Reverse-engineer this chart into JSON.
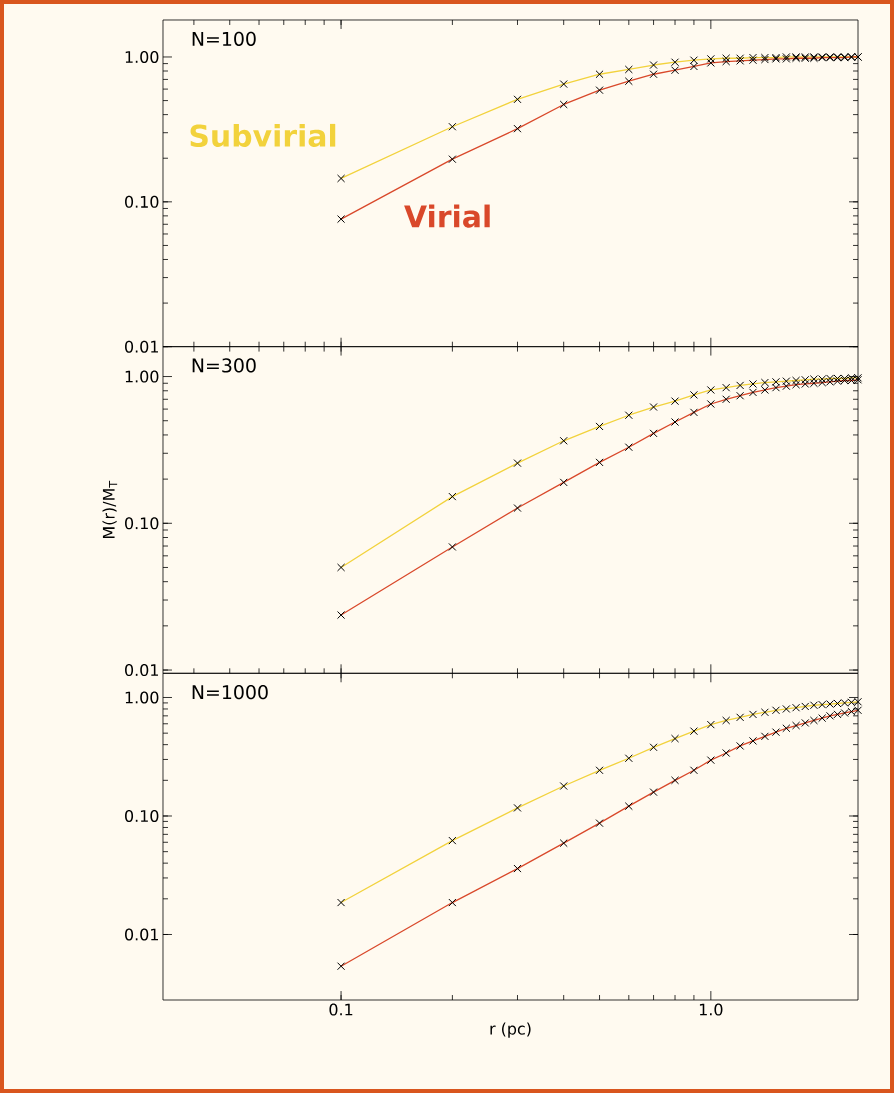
{
  "chart_data": [
    {
      "type": "line",
      "log": "xy",
      "marker": "cross",
      "tick_labels": "y",
      "xlim": [
        0.033,
        2.5
      ],
      "ylim": [
        0.01,
        1.8
      ],
      "yticks": [
        {
          "value": 0.01,
          "label": "0.01"
        },
        {
          "value": 0.1,
          "label": "0.10"
        },
        {
          "value": 1,
          "label": "1.00"
        }
      ],
      "annotations": [
        "N=100"
      ],
      "x": [
        0.1,
        0.2,
        0.3,
        0.4,
        0.5,
        0.6,
        0.7,
        0.8,
        0.9,
        1.0,
        1.1,
        1.2,
        1.3,
        1.4,
        1.5,
        1.6,
        1.7,
        1.8,
        1.9,
        2.0,
        2.1,
        2.2,
        2.3,
        2.4,
        2.5
      ],
      "series": [
        {
          "name": "Subvirial",
          "color": "#f2d23c",
          "values": [
            0.145,
            0.33,
            0.51,
            0.65,
            0.76,
            0.82,
            0.88,
            0.92,
            0.95,
            0.97,
            0.98,
            0.98,
            0.99,
            0.99,
            0.99,
            1.0,
            1.0,
            1.0,
            1.0,
            1.0,
            1.0,
            1.0,
            1.0,
            1.0,
            1.0
          ]
        },
        {
          "name": "Virial",
          "color": "#d9482a",
          "values": [
            0.076,
            0.197,
            0.32,
            0.47,
            0.59,
            0.68,
            0.76,
            0.81,
            0.86,
            0.91,
            0.93,
            0.94,
            0.95,
            0.96,
            0.97,
            0.97,
            0.98,
            0.98,
            0.98,
            0.99,
            0.99,
            0.99,
            0.99,
            1.0,
            1.0
          ]
        }
      ]
    },
    {
      "type": "line",
      "log": "xy",
      "marker": "cross",
      "tick_labels": "y",
      "xlim": [
        0.033,
        2.5
      ],
      "ylim": [
        0.0095,
        1.6
      ],
      "yticks": [
        {
          "value": 0.01,
          "label": "0.01"
        },
        {
          "value": 0.1,
          "label": "0.10"
        },
        {
          "value": 1,
          "label": "1.00"
        }
      ],
      "ylabel": "M(r)/M$_{T}$",
      "annotations": [
        "N=300"
      ],
      "x": [
        0.1,
        0.2,
        0.3,
        0.4,
        0.5,
        0.6,
        0.7,
        0.8,
        0.9,
        1.0,
        1.1,
        1.2,
        1.3,
        1.4,
        1.5,
        1.6,
        1.7,
        1.8,
        1.9,
        2.0,
        2.1,
        2.2,
        2.3,
        2.4,
        2.5
      ],
      "series": [
        {
          "color": "#f2d23c",
          "values": [
            0.05,
            0.152,
            0.257,
            0.365,
            0.457,
            0.545,
            0.62,
            0.68,
            0.75,
            0.81,
            0.84,
            0.87,
            0.89,
            0.91,
            0.92,
            0.93,
            0.94,
            0.95,
            0.96,
            0.96,
            0.97,
            0.97,
            0.97,
            0.98,
            0.98
          ]
        },
        {
          "color": "#d9482a",
          "values": [
            0.0237,
            0.069,
            0.127,
            0.19,
            0.26,
            0.33,
            0.41,
            0.49,
            0.57,
            0.65,
            0.7,
            0.74,
            0.78,
            0.81,
            0.84,
            0.86,
            0.88,
            0.89,
            0.9,
            0.91,
            0.92,
            0.93,
            0.94,
            0.94,
            0.95
          ]
        }
      ]
    },
    {
      "type": "line",
      "log": "xy",
      "marker": "cross",
      "xlim": [
        0.033,
        2.5
      ],
      "ylim": [
        0.0028,
        1.6
      ],
      "xticks": [
        {
          "value": 0.1,
          "label": "0.1"
        },
        {
          "value": 1,
          "label": "1.0"
        }
      ],
      "yticks": [
        {
          "value": 0.01,
          "label": "0.01"
        },
        {
          "value": 0.1,
          "label": "0.10"
        },
        {
          "value": 1,
          "label": "1.00"
        }
      ],
      "xlabel": "r (pc)",
      "annotations": [
        "N=1000"
      ],
      "x": [
        0.1,
        0.2,
        0.3,
        0.4,
        0.5,
        0.6,
        0.7,
        0.8,
        0.9,
        1.0,
        1.1,
        1.2,
        1.3,
        1.4,
        1.5,
        1.6,
        1.7,
        1.8,
        1.9,
        2.0,
        2.1,
        2.2,
        2.3,
        2.4,
        2.5
      ],
      "series": [
        {
          "color": "#f2d23c",
          "values": [
            0.0186,
            0.062,
            0.117,
            0.179,
            0.243,
            0.307,
            0.38,
            0.45,
            0.52,
            0.59,
            0.64,
            0.68,
            0.72,
            0.75,
            0.78,
            0.8,
            0.82,
            0.84,
            0.86,
            0.87,
            0.88,
            0.89,
            0.9,
            0.91,
            0.92
          ]
        },
        {
          "color": "#d9482a",
          "values": [
            0.0054,
            0.0186,
            0.036,
            0.059,
            0.087,
            0.121,
            0.159,
            0.2,
            0.243,
            0.296,
            0.34,
            0.39,
            0.43,
            0.47,
            0.51,
            0.55,
            0.58,
            0.61,
            0.64,
            0.67,
            0.7,
            0.72,
            0.74,
            0.76,
            0.78
          ]
        }
      ]
    }
  ]
}
